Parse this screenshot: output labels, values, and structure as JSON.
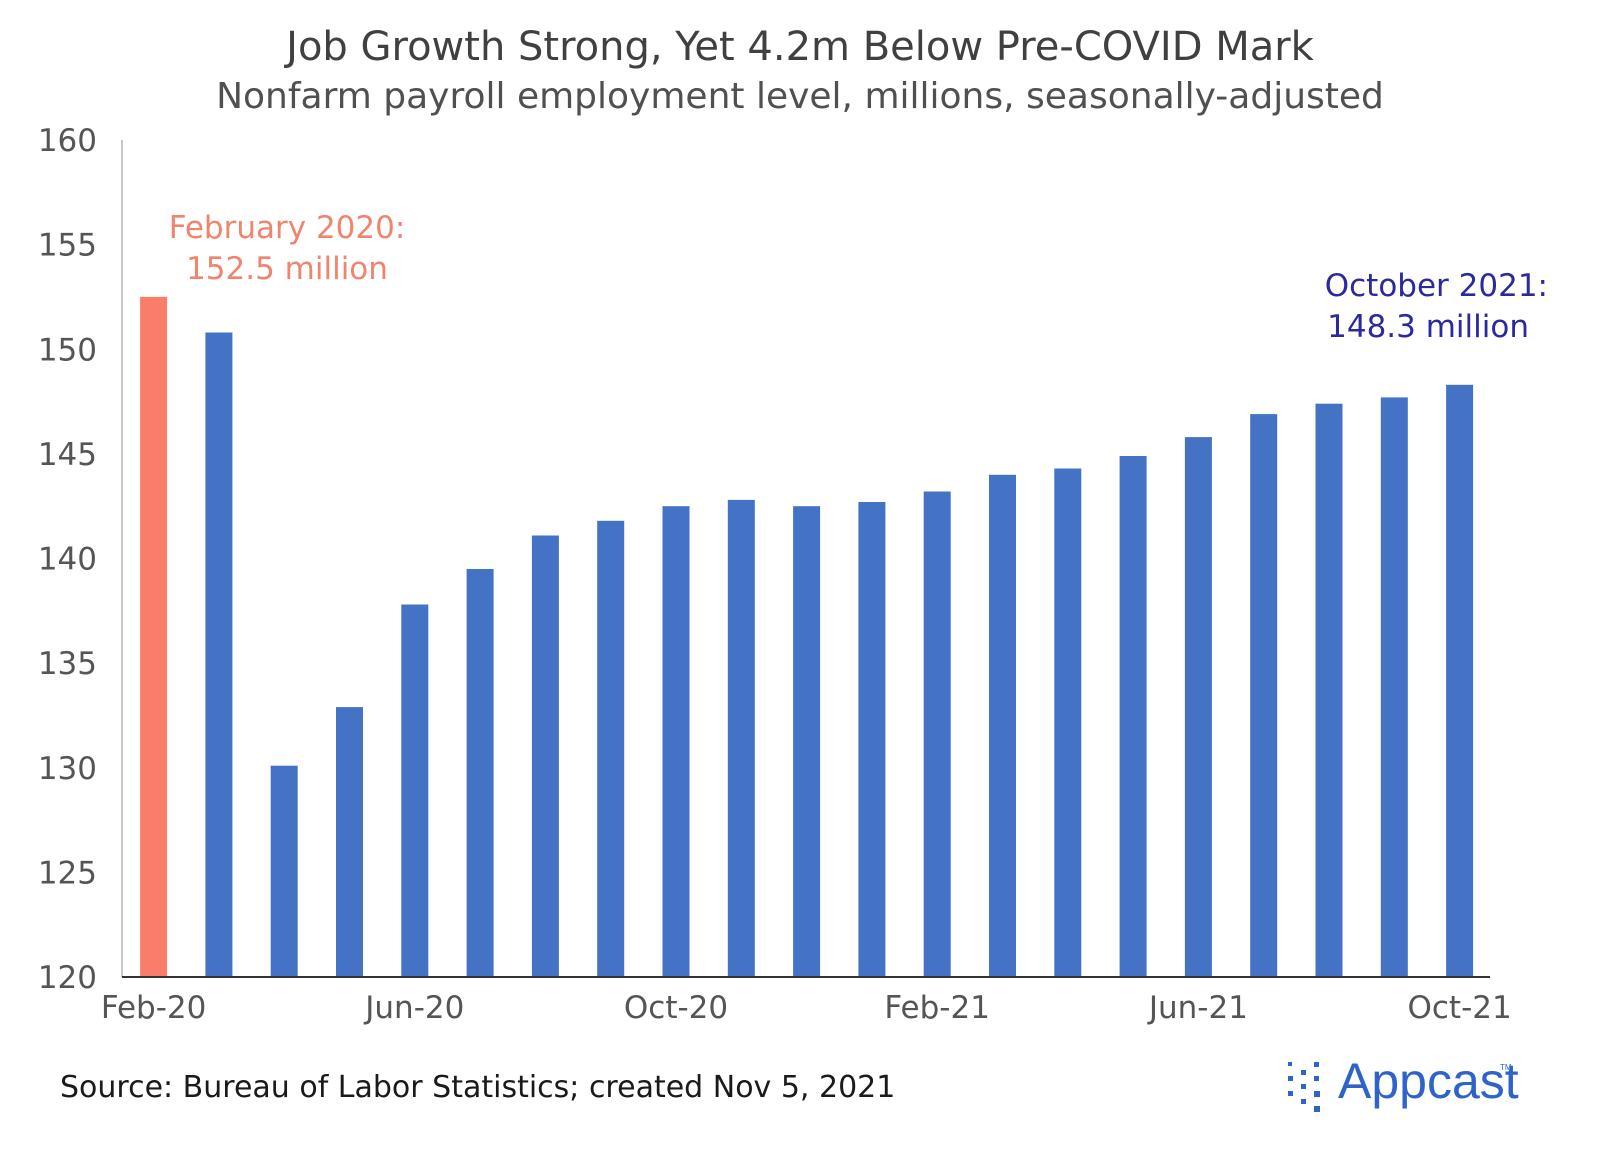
{
  "colors": {
    "highlight": "#FA7D6C",
    "bar": "#4472C4",
    "annotation_feb": "#F0846E",
    "annotation_oct": "#2B2A9C",
    "axis": "#333333",
    "logo": "#2E64C9"
  },
  "chart_data": {
    "type": "bar",
    "title": "Job Growth Strong, Yet 4.2m Below Pre-COVID Mark",
    "subtitle": "Nonfarm payroll employment level, millions, seasonally-adjusted",
    "xlabel": "",
    "ylabel": "",
    "ylim": [
      120,
      160
    ],
    "ytick_values": [
      120,
      125,
      130,
      135,
      140,
      145,
      150,
      155,
      160
    ],
    "ytick_labels": [
      "120",
      "125",
      "130",
      "135",
      "140",
      "145",
      "150",
      "155",
      "160"
    ],
    "categories": [
      "Feb-20",
      "Mar-20",
      "Apr-20",
      "May-20",
      "Jun-20",
      "Jul-20",
      "Aug-20",
      "Sep-20",
      "Oct-20",
      "Nov-20",
      "Dec-20",
      "Jan-21",
      "Feb-21",
      "Mar-21",
      "Apr-21",
      "May-21",
      "Jun-21",
      "Jul-21",
      "Aug-21",
      "Sep-21",
      "Oct-21"
    ],
    "xtick_labels": [
      {
        "index": 0,
        "label": "Feb-20"
      },
      {
        "index": 4,
        "label": "Jun-20"
      },
      {
        "index": 8,
        "label": "Oct-20"
      },
      {
        "index": 12,
        "label": "Feb-21"
      },
      {
        "index": 16,
        "label": "Jun-21"
      },
      {
        "index": 20,
        "label": "Oct-21"
      }
    ],
    "values": [
      152.5,
      150.8,
      130.1,
      132.9,
      137.8,
      139.5,
      141.1,
      141.8,
      142.5,
      142.8,
      142.5,
      142.7,
      143.2,
      144.0,
      144.3,
      144.9,
      145.8,
      146.9,
      147.4,
      147.7,
      148.3
    ],
    "highlight_index": 0,
    "grid": false,
    "annotations": [
      {
        "lines": [
          "February 2020:",
          "152.5 million"
        ],
        "target_index": 0,
        "color_key": "annotation_feb"
      },
      {
        "lines": [
          "October 2021:",
          "148.3 million"
        ],
        "target_index": 20,
        "color_key": "annotation_oct"
      }
    ]
  },
  "footer": {
    "source": "Source: Bureau of Labor Statistics; created Nov 5, 2021"
  },
  "logo": {
    "text": "Appcast",
    "tm": "TM",
    "icon": "appcast-dot-grid-icon"
  }
}
